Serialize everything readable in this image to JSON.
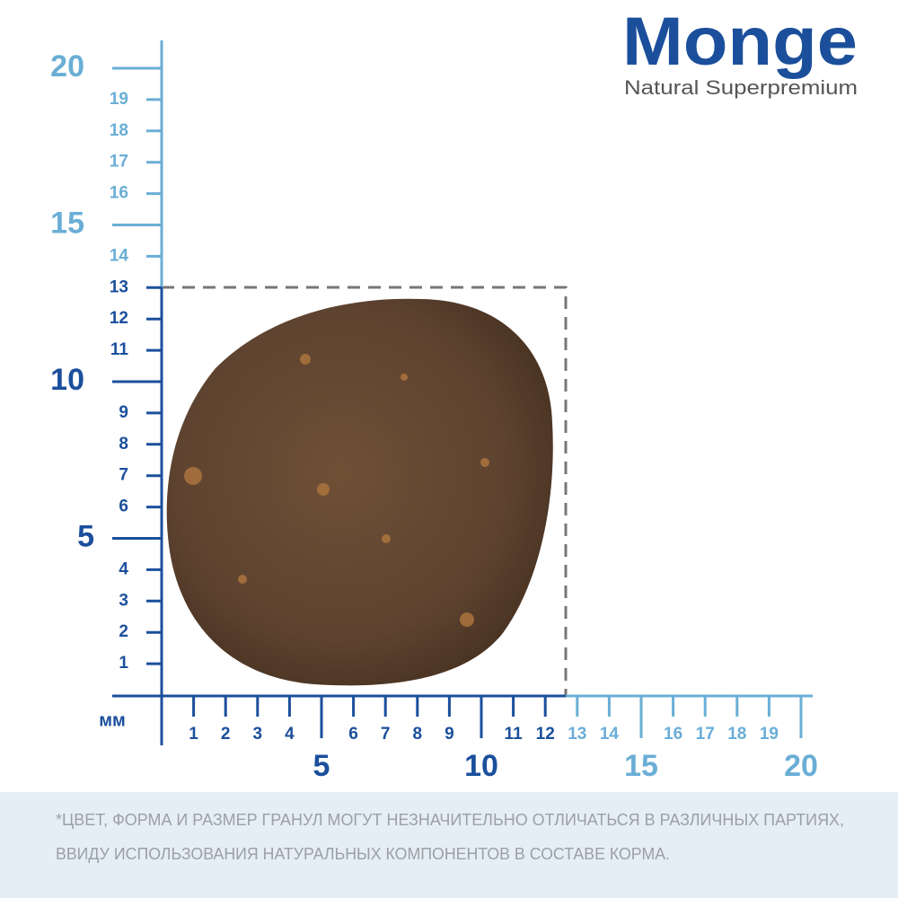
{
  "brand": {
    "name": "Monge",
    "tagline": "Natural Superpremium"
  },
  "ruler": {
    "unit": "мм",
    "y_minor_labels": [
      "1",
      "2",
      "3",
      "4",
      "6",
      "7",
      "8",
      "9",
      "11",
      "12",
      "13",
      "14",
      "16",
      "17",
      "18",
      "19"
    ],
    "y_major_labels": [
      "5",
      "10",
      "15",
      "20"
    ],
    "x_minor_labels": [
      "1",
      "2",
      "3",
      "4",
      "6",
      "7",
      "8",
      "9",
      "11",
      "12",
      "13",
      "14",
      "16",
      "17",
      "18",
      "19"
    ],
    "x_major_labels": [
      "5",
      "10",
      "15",
      "20"
    ]
  },
  "disclaimer": [
    "*ЦВЕТ, ФОРМА И РАЗМЕР ГРАНУЛ МОГУТ НЕЗНАЧИТЕЛЬНО ОТЛИЧАТЬСЯ В РАЗЛИЧНЫХ ПАРТИЯХ,",
    "ВВИДУ ИСПОЛЬЗОВАНИЯ НАТУРАЛЬНЫХ КОМПОНЕНТОВ В СОСТАВЕ КОРМА."
  ]
}
